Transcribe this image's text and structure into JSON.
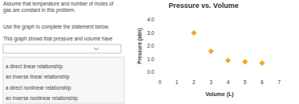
{
  "page": {
    "intro": [
      "Assume that temperature and number of moles of",
      "gas are constant in this problem."
    ],
    "instruction": "Use the graph to complete the statement below.",
    "statement": "This graph shows that pressure and volume have",
    "dropdown_options": [
      "a direct linear relationship",
      "an inverse linear relationship",
      "a direct nonlinear relationship",
      "an inverse nonlinear relationship"
    ]
  },
  "chart_data": {
    "type": "scatter",
    "title": "Pressure vs. Volume",
    "x_label": "Volume (L)",
    "y_label": "Pressure (atm)",
    "x": [
      2,
      3,
      4,
      5,
      6
    ],
    "values": [
      3.0,
      1.6,
      0.9,
      0.8,
      0.7
    ],
    "color": "#f5a623",
    "marker": "diamond",
    "xlim": [
      0,
      7
    ],
    "ylim": [
      0,
      4
    ],
    "xticks": [
      0,
      1,
      2,
      3,
      4,
      5,
      6,
      7
    ],
    "yticks": [
      {
        "value": 0,
        "label": "0.0"
      },
      {
        "value": 1,
        "label": "1.0"
      },
      {
        "value": 2,
        "label": "2.0"
      },
      {
        "value": 3,
        "label": "3.0"
      },
      {
        "value": 4,
        "label": "4.0"
      }
    ],
    "grid": false
  }
}
